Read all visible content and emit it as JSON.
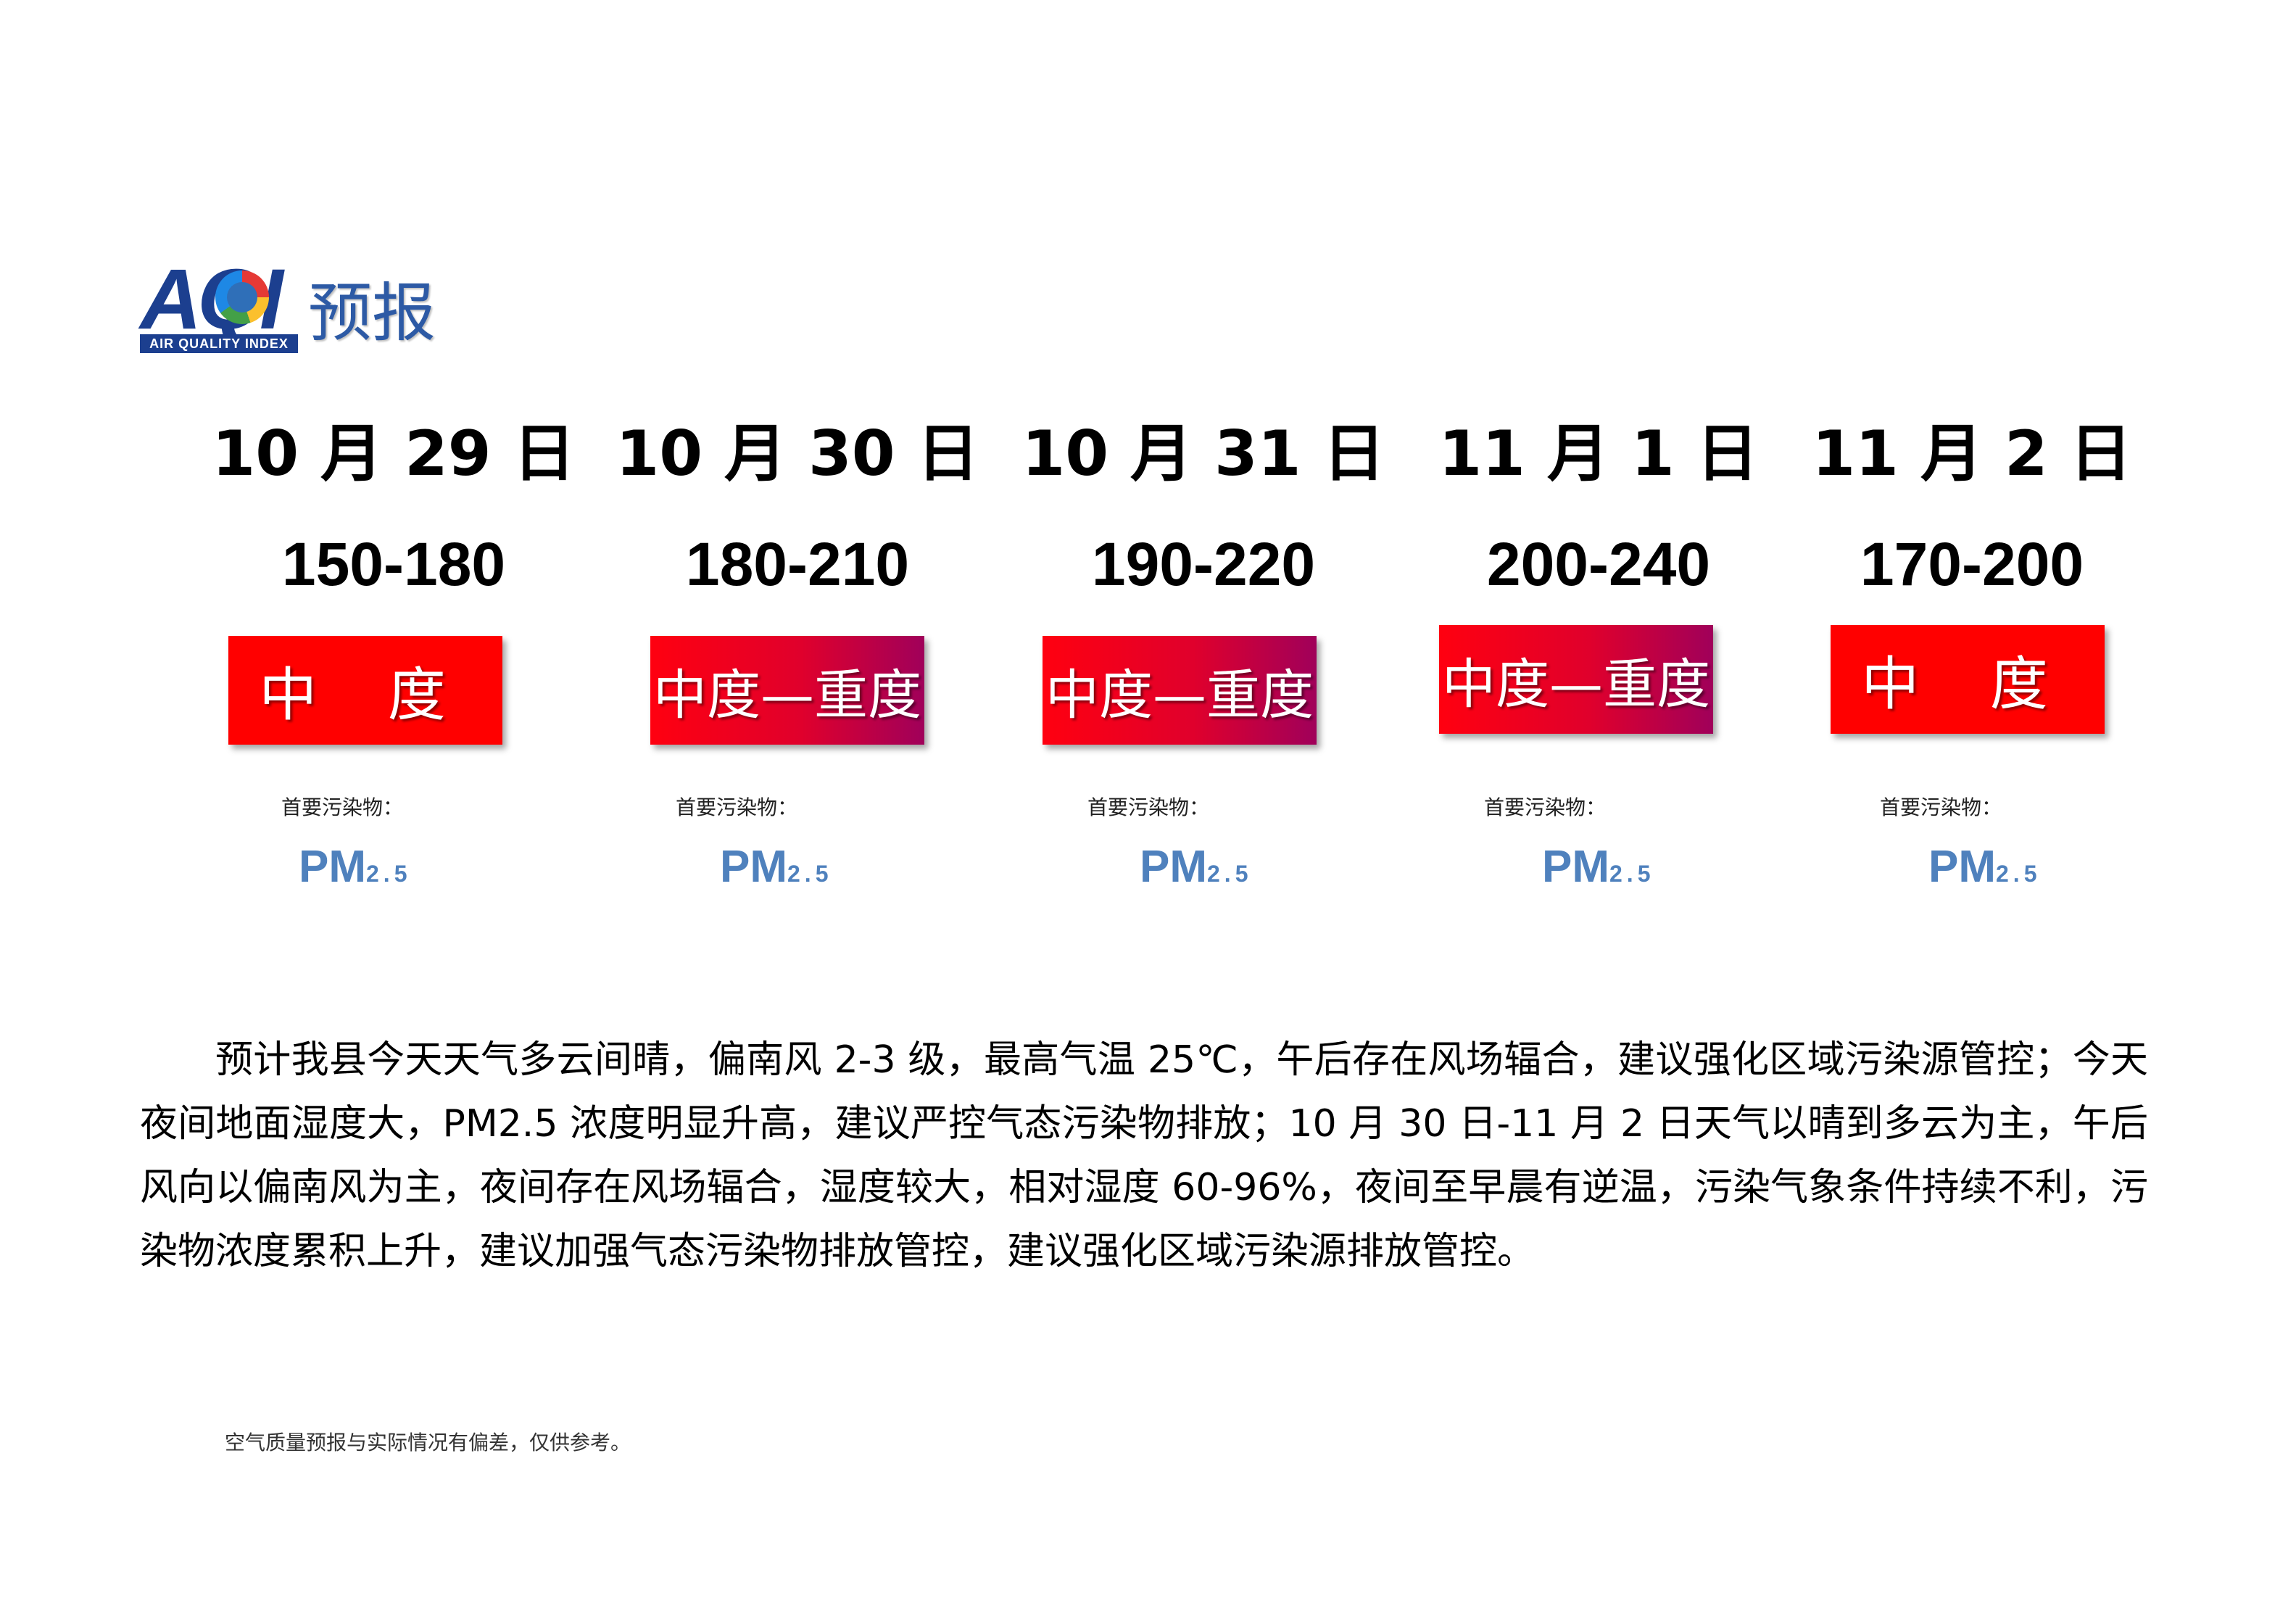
{
  "logo": {
    "aqi": "AQI",
    "subtitle": "AIR QUALITY INDEX",
    "title": "预报"
  },
  "days": [
    {
      "date": "10 月 29 日",
      "range": "150-180",
      "level": "中 度",
      "pollutant_label": "首要污染物：",
      "pollutant": "PM",
      "pollutant_sub": "2.5"
    },
    {
      "date": "10 月 30 日",
      "range": "180-210",
      "level": "中度—重度",
      "pollutant_label": "首要污染物：",
      "pollutant": "PM",
      "pollutant_sub": "2.5"
    },
    {
      "date": "10 月 31 日",
      "range": "190-220",
      "level": "中度—重度",
      "pollutant_label": "首要污染物：",
      "pollutant": "PM",
      "pollutant_sub": "2.5"
    },
    {
      "date": "11 月 1 日",
      "range": "200-240",
      "level": "中度—重度",
      "pollutant_label": "首要污染物：",
      "pollutant": "PM",
      "pollutant_sub": "2.5"
    },
    {
      "date": "11 月 2 日",
      "range": "170-200",
      "level": "中 度",
      "pollutant_label": "首要污染物：",
      "pollutant": "PM",
      "pollutant_sub": "2.5"
    }
  ],
  "colors": {
    "level_mid": "#ff0000",
    "level_grad_end": "#a0005a",
    "pollutant": "#4f81bd",
    "logo_blue": "#1c3f8f"
  },
  "description": "预计我县今天天气多云间晴，偏南风 2-3 级，最高气温 25℃，午后存在风场辐合，建议强化区域污染源管控；今天夜间地面湿度大，PM2.5 浓度明显升高，建议严控气态污染物排放；10 月 30 日-11 月 2 日天气以晴到多云为主，午后风向以偏南风为主，夜间存在风场辐合，湿度较大，相对湿度 60-96%，夜间至早晨有逆温，污染气象条件持续不利，污染物浓度累积上升，建议加强气态污染物排放管控，建议强化区域污染源排放管控。",
  "disclaimer": "空气质量预报与实际情况有偏差，仅供参考。"
}
